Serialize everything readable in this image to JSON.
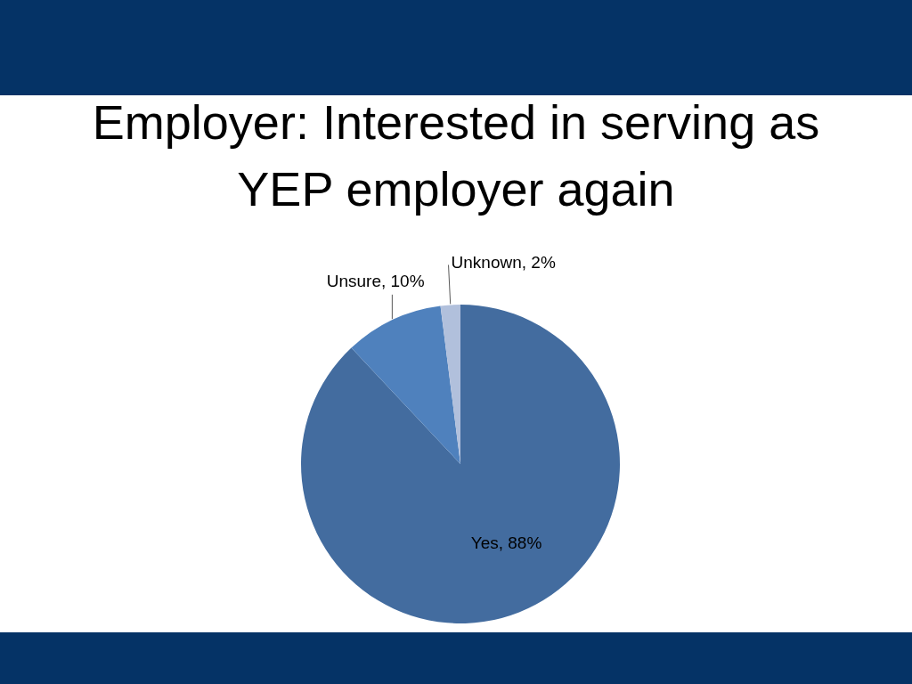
{
  "chart_data": {
    "type": "pie",
    "title": "Employer: Interested in serving as YEP employer again",
    "categories": [
      "Yes",
      "Unsure",
      "Unknown"
    ],
    "values": [
      88,
      10,
      2
    ],
    "colors": [
      "#436c9f",
      "#4f81bd",
      "#b1c0dc"
    ],
    "value_labels": [
      "88%",
      "10%",
      "2%"
    ]
  }
}
